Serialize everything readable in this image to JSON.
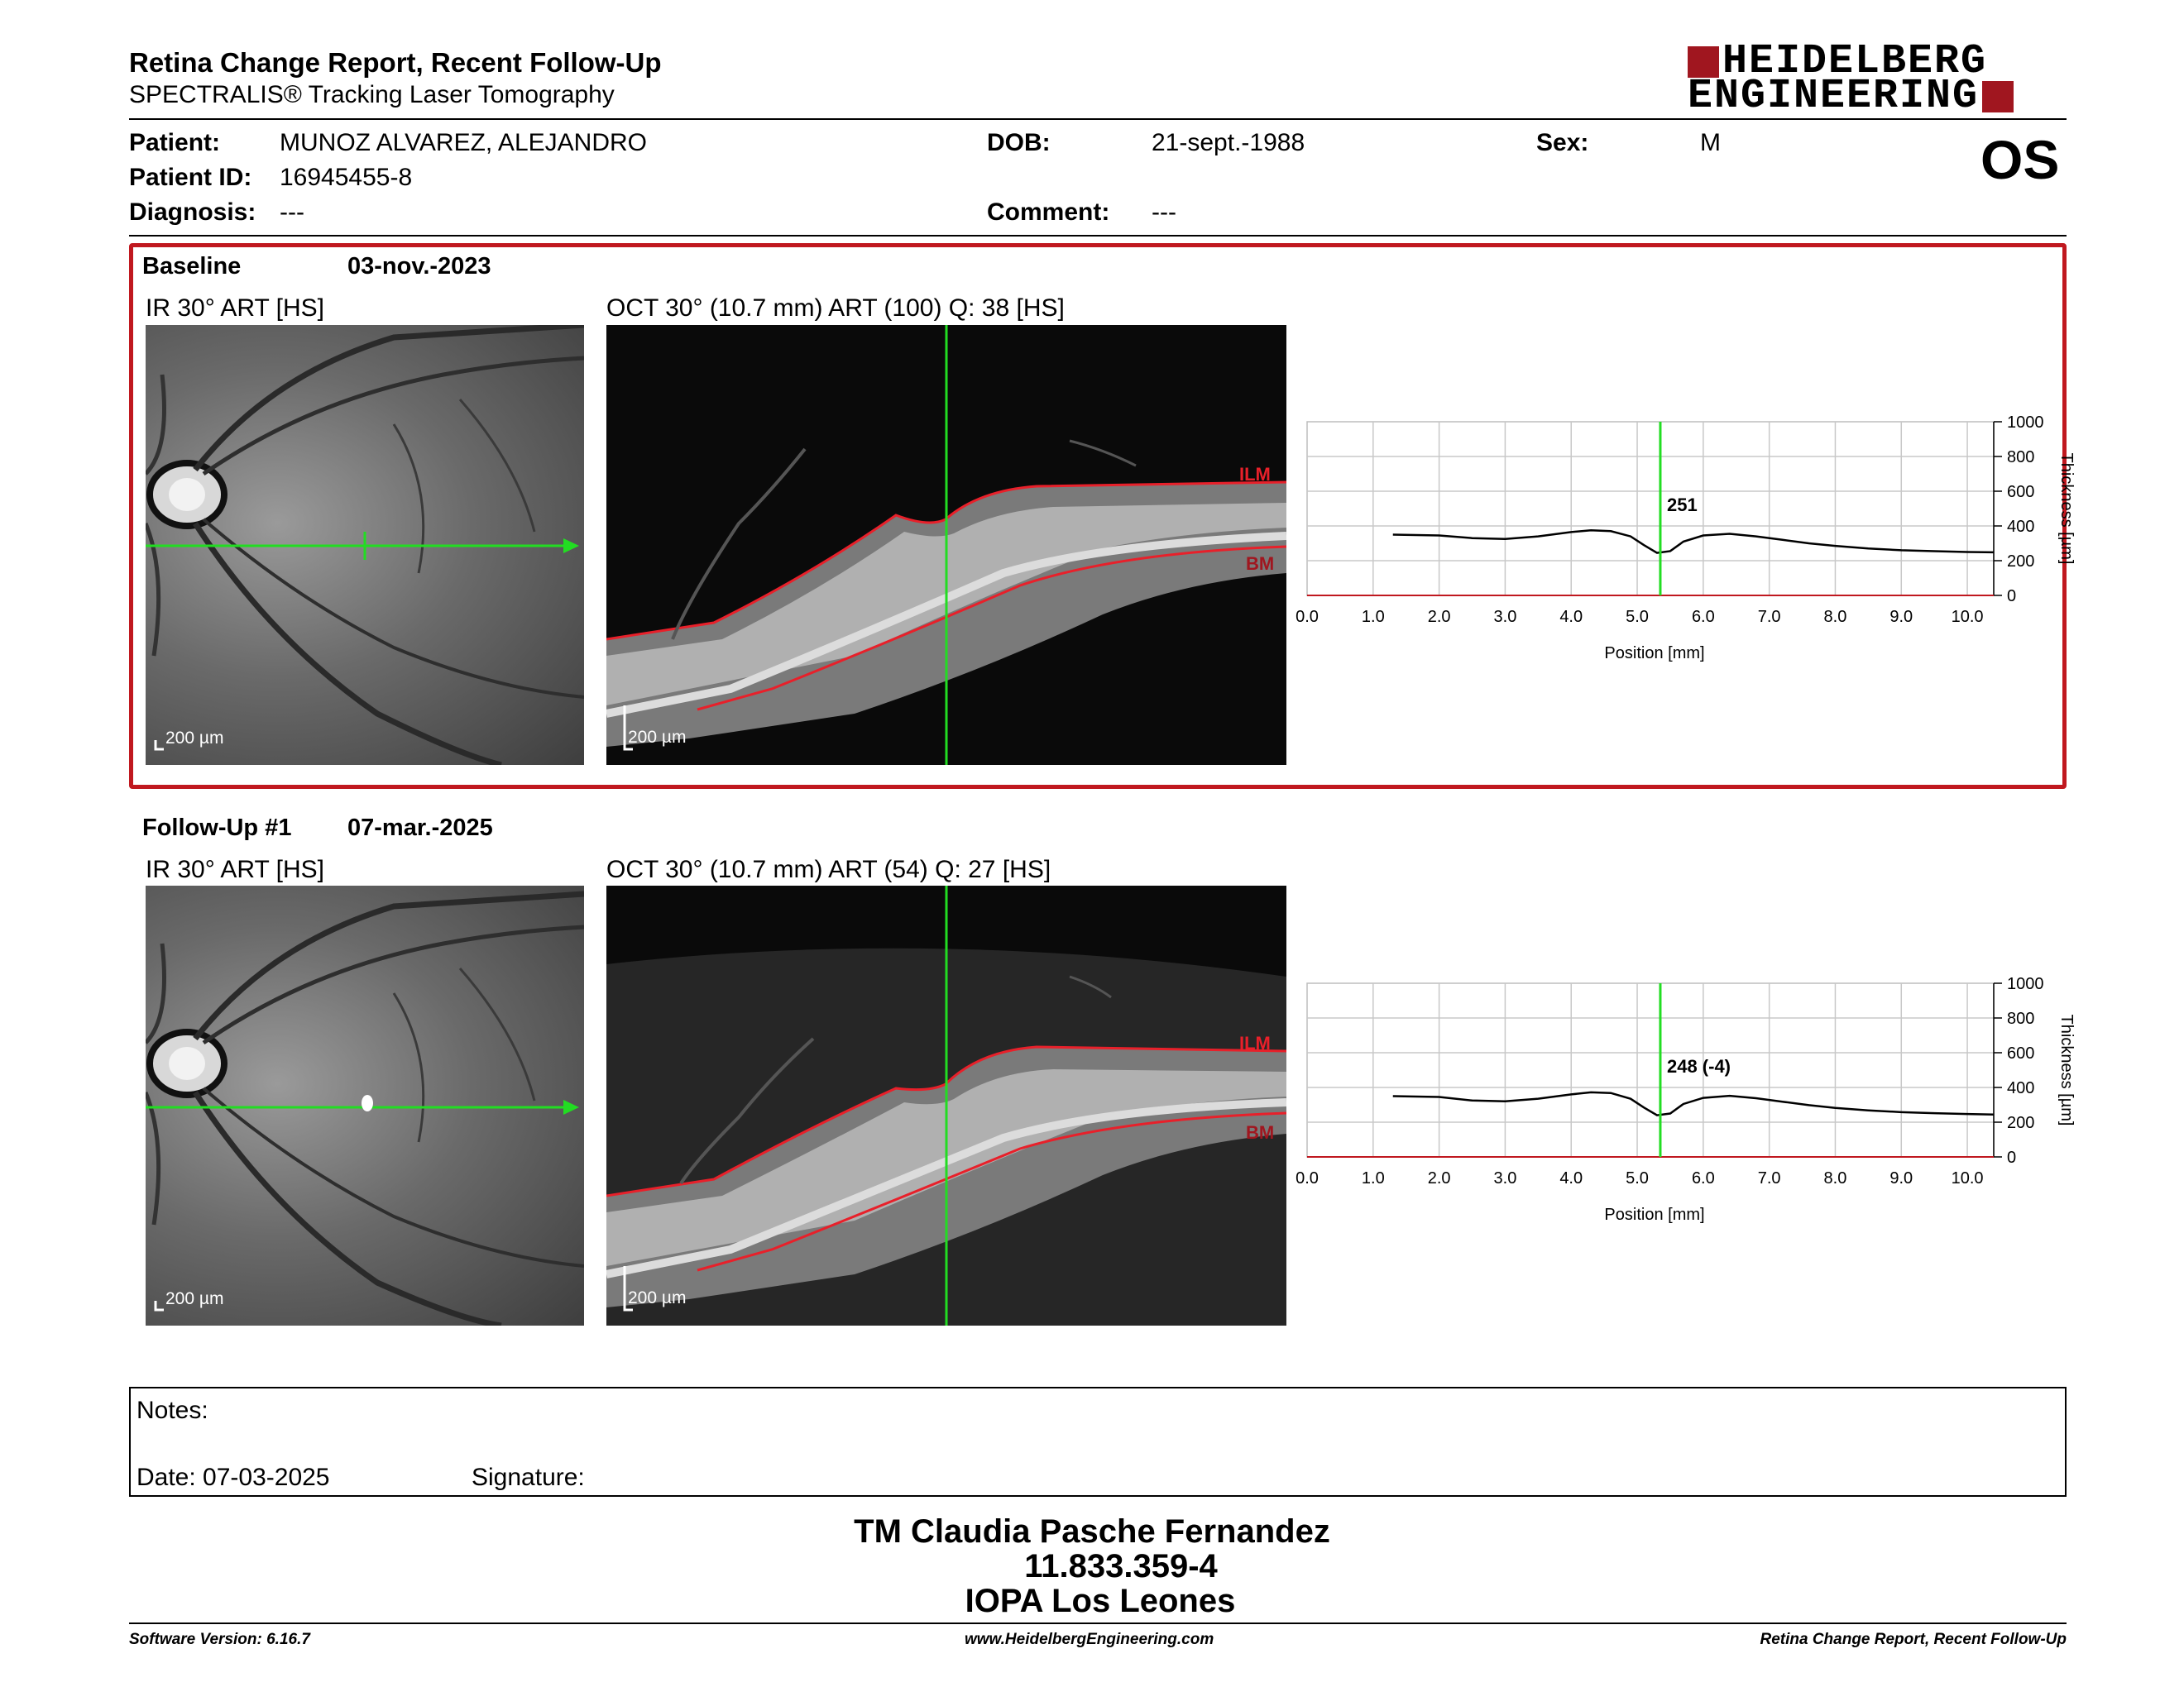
{
  "header": {
    "title": "Retina Change Report, Recent Follow-Up",
    "subtitle": "SPECTRALIS® Tracking Laser Tomography",
    "logo_line1": "HEIDELBERG",
    "logo_line2": "ENGINEERING",
    "eye": "OS"
  },
  "patient": {
    "patient_label": "Patient:",
    "patient_value": "MUNOZ ALVAREZ, ALEJANDRO",
    "id_label": "Patient ID:",
    "id_value": "16945455-8",
    "diagnosis_label": "Diagnosis:",
    "diagnosis_value": "---",
    "dob_label": "DOB:",
    "dob_value": "21-sept.-1988",
    "comment_label": "Comment:",
    "comment_value": "---",
    "sex_label": "Sex:",
    "sex_value": "M"
  },
  "baseline": {
    "label": "Baseline",
    "date": "03-nov.-2023",
    "ir_title": "IR 30° ART [HS]",
    "oct_title": "OCT 30° (10.7 mm) ART (100) Q: 38 [HS]",
    "scale_ir": "200 µm",
    "scale_oct": "200 µm",
    "ilm": "ILM",
    "bm": "BM",
    "marker_value": "251"
  },
  "followup": {
    "label": "Follow-Up #1",
    "date": "07-mar.-2025",
    "ir_title": "IR 30° ART [HS]",
    "oct_title": "OCT 30° (10.7 mm) ART (54) Q: 27 [HS]",
    "scale_ir": "200 µm",
    "scale_oct": "200 µm",
    "ilm": "ILM",
    "bm": "BM",
    "marker_value": "248 (-4)"
  },
  "chart_data": [
    {
      "type": "line",
      "xlabel": "Position [mm]",
      "ylabel": "Thickness [µm]",
      "xlim": [
        0,
        10.4
      ],
      "ylim": [
        0,
        1000
      ],
      "x_ticks": [
        "0.0",
        "1.0",
        "2.0",
        "3.0",
        "4.0",
        "5.0",
        "6.0",
        "7.0",
        "8.0",
        "9.0",
        "10.0"
      ],
      "y_ticks": [
        "0",
        "200",
        "400",
        "600",
        "800",
        "1000"
      ],
      "grid": true,
      "marker_x": 5.35,
      "marker_label": "251",
      "x": [
        1.3,
        2.0,
        2.5,
        3.0,
        3.5,
        4.0,
        4.3,
        4.6,
        4.9,
        5.1,
        5.3,
        5.5,
        5.7,
        6.0,
        6.4,
        6.8,
        7.2,
        7.6,
        8.0,
        8.5,
        9.0,
        9.5,
        10.0,
        10.4
      ],
      "y": [
        350,
        345,
        330,
        325,
        340,
        365,
        375,
        370,
        340,
        290,
        245,
        255,
        310,
        345,
        355,
        340,
        320,
        300,
        285,
        270,
        260,
        255,
        250,
        248
      ]
    },
    {
      "type": "line",
      "xlabel": "Position [mm]",
      "ylabel": "Thickness [µm]",
      "xlim": [
        0,
        10.4
      ],
      "ylim": [
        0,
        1000
      ],
      "x_ticks": [
        "0.0",
        "1.0",
        "2.0",
        "3.0",
        "4.0",
        "5.0",
        "6.0",
        "7.0",
        "8.0",
        "9.0",
        "10.0"
      ],
      "y_ticks": [
        "0",
        "200",
        "400",
        "600",
        "800",
        "1000"
      ],
      "grid": true,
      "marker_x": 5.35,
      "marker_label": "248 (-4)",
      "x": [
        1.3,
        2.0,
        2.5,
        3.0,
        3.5,
        4.0,
        4.3,
        4.6,
        4.9,
        5.1,
        5.3,
        5.5,
        5.7,
        6.0,
        6.4,
        6.8,
        7.2,
        7.6,
        8.0,
        8.5,
        9.0,
        9.5,
        10.0,
        10.4
      ],
      "y": [
        350,
        345,
        325,
        320,
        335,
        360,
        372,
        368,
        335,
        285,
        240,
        250,
        305,
        340,
        352,
        338,
        318,
        298,
        282,
        268,
        258,
        252,
        247,
        244
      ]
    }
  ],
  "notes": {
    "notes_label": "Notes:",
    "date_label": "Date: 07-03-2025",
    "signature_label": "Signature:"
  },
  "signature_block": {
    "line1": "TM Claudia Pasche Fernandez",
    "line2": "11.833.359-4",
    "line3": "IOPA Los Leones"
  },
  "footer": {
    "software": "Software Version: 6.16.7",
    "website": "www.HeidelbergEngineering.com",
    "report_name": "Retina Change Report, Recent Follow-Up"
  },
  "colors": {
    "brand_red": "#a0161f",
    "frame_red": "#c0181f",
    "marker_green": "#22dd22",
    "segment_red": "#e8202a"
  }
}
